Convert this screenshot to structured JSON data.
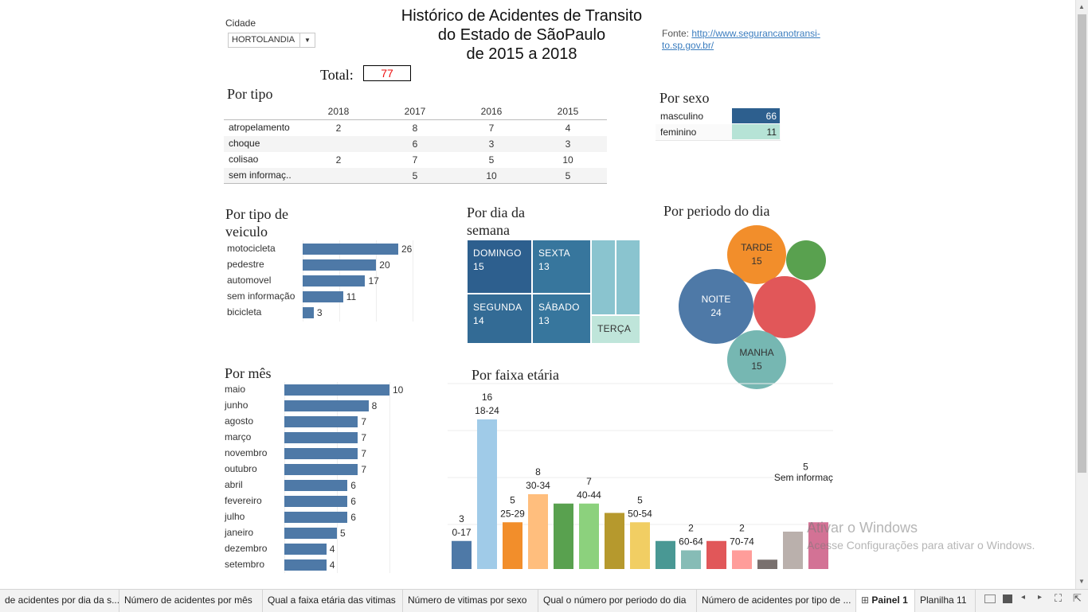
{
  "filter": {
    "label": "Cidade",
    "value": "HORTOLANDIA"
  },
  "title": {
    "line1": "Histórico de Acidentes de Transito",
    "line2": "do Estado de SãoPaulo",
    "line3": "de 2015 a 2018"
  },
  "source": {
    "prefix": "Fonte:",
    "link_line1": "http://www.segurancanotransi-",
    "link_line2": "to.sp.gov.br/"
  },
  "total": {
    "label": "Total:",
    "value": "77"
  },
  "por_tipo": {
    "title": "Por tipo",
    "columns": [
      "2018",
      "2017",
      "2016",
      "2015"
    ],
    "rows": [
      {
        "label": "atropelamento",
        "values": [
          "2",
          "8",
          "7",
          "4"
        ]
      },
      {
        "label": "choque",
        "values": [
          "",
          "6",
          "3",
          "3"
        ]
      },
      {
        "label": "colisao",
        "values": [
          "2",
          "7",
          "5",
          "10"
        ]
      },
      {
        "label": "sem informaç..",
        "values": [
          "",
          "5",
          "10",
          "5"
        ]
      }
    ]
  },
  "por_sexo": {
    "title": "Por sexo",
    "rows": [
      {
        "label": "masculino",
        "value": "66",
        "color": "#2d5f8e"
      },
      {
        "label": "feminino",
        "value": "11",
        "color": "#b6e3d6"
      }
    ]
  },
  "por_veiculo": {
    "title_line1": "Por tipo de",
    "title_line2": "veiculo",
    "chart_data": {
      "type": "bar",
      "categories": [
        "motocicleta",
        "pedestre",
        "automovel",
        "sem informação",
        "bicicleta"
      ],
      "values": [
        26,
        20,
        17,
        11,
        3
      ]
    }
  },
  "por_dia": {
    "title_line1": "Por dia da",
    "title_line2": "semana",
    "cells": [
      {
        "label": "DOMINGO",
        "value": "15",
        "color": "#2d5f8e"
      },
      {
        "label": "SEXTA",
        "value": "13",
        "color": "#37769d"
      },
      {
        "label": "SEGUNDA",
        "value": "14",
        "color": "#336b95"
      },
      {
        "label": "SÁBADO",
        "value": "13",
        "color": "#37769d"
      },
      {
        "label": "",
        "value": "",
        "color": "#8ac4cf"
      },
      {
        "label": "",
        "value": "",
        "color": "#8ac4cf"
      },
      {
        "label": "TERÇA",
        "value": "",
        "color": "#bfe5da"
      }
    ]
  },
  "por_periodo": {
    "title": "Por periodo do dia",
    "bubbles": [
      {
        "label": "TARDE",
        "value": "15",
        "color": "#f28e2b"
      },
      {
        "label": "",
        "value": "",
        "color": "#59a14f"
      },
      {
        "label": "NOITE",
        "value": "24",
        "color": "#4e79a7"
      },
      {
        "label": "",
        "value": "",
        "color": "#e15759"
      },
      {
        "label": "MANHA",
        "value": "15",
        "color": "#76b7b2"
      }
    ]
  },
  "por_mes": {
    "title": "Por mês",
    "chart_data": {
      "type": "bar",
      "categories": [
        "maio",
        "junho",
        "agosto",
        "março",
        "novembro",
        "outubro",
        "abril",
        "fevereiro",
        "julho",
        "janeiro",
        "dezembro",
        "setembro"
      ],
      "values": [
        10,
        8,
        7,
        7,
        7,
        7,
        6,
        6,
        6,
        5,
        4,
        4
      ]
    }
  },
  "por_faixa": {
    "title": "Por faixa etária",
    "chart_data": {
      "type": "bar",
      "categories": [
        "0-17",
        "18-24",
        "25-29",
        "30-34",
        "",
        "40-44",
        "",
        "50-54",
        "",
        "60-64",
        "",
        "70-74",
        "",
        "Sem informação",
        ""
      ],
      "values": [
        3,
        16,
        5,
        8,
        7,
        7,
        6,
        5,
        3,
        2,
        3,
        2,
        1,
        4,
        5
      ],
      "labels": [
        "3",
        "16",
        "5",
        "8",
        "",
        "7",
        "",
        "5",
        "",
        "2",
        "",
        "2",
        "",
        "",
        "5"
      ],
      "colors": [
        "#4e79a7",
        "#a0cbe8",
        "#f28e2b",
        "#ffbe7d",
        "#59a14f",
        "#8cd17d",
        "#b6992d",
        "#f1ce63",
        "#499894",
        "#86bcb6",
        "#e15759",
        "#ff9d9a",
        "#79706e",
        "#bab0ac",
        "#d37295"
      ],
      "ymax": 16
    }
  },
  "watermark": {
    "line1": "Ativar o Windows",
    "line2": "Acesse Configurações para ativar o Windows."
  },
  "tabs": [
    "de acidentes por dia da s...",
    "Número de acidentes por mês",
    "Qual a faixa etária das vitimas",
    "Número de vitimas por sexo",
    "Qual o número por periodo do dia",
    "Número de acidentes por tipo de ...",
    "Painel 1",
    "Planilha 11"
  ]
}
